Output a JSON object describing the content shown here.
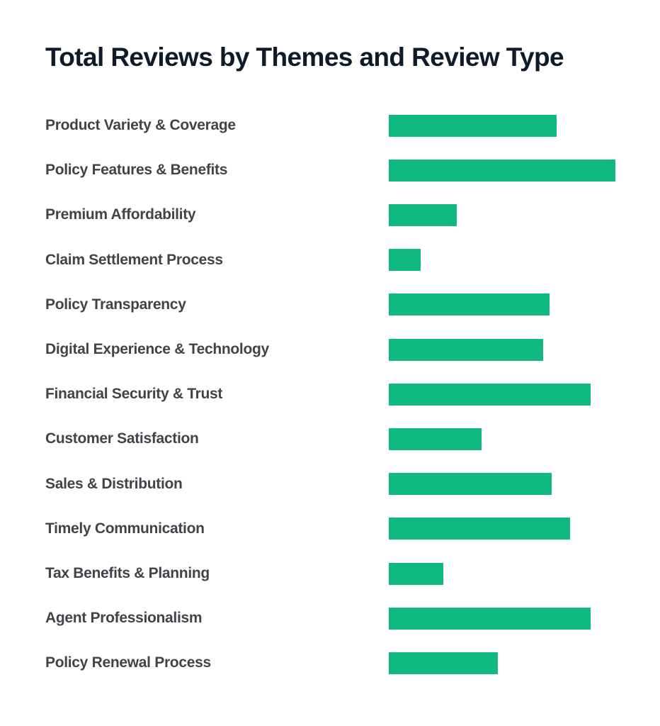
{
  "chart_data": {
    "type": "bar",
    "orientation": "horizontal",
    "title": "Total Reviews by Themes and Review Type",
    "categories": [
      "Product Variety & Coverage",
      "Policy Features & Benefits",
      "Premium Affordability",
      "Claim Settlement Process",
      "Policy Transparency",
      "Digital Experience & Technology",
      "Financial Security & Trust",
      "Customer Satisfaction",
      "Sales & Distribution",
      "Timely Communication",
      "Tax Benefits & Planning",
      "Agent Professionalism",
      "Policy Renewal Process"
    ],
    "values": [
      74,
      100,
      30,
      14,
      71,
      68,
      89,
      41,
      72,
      80,
      24,
      89,
      48
    ],
    "value_scale": "relative (no axis or data labels shown; values are bar lengths as % of the longest bar)",
    "bar_color": "#10b981",
    "grid": false,
    "legend": "none",
    "xlabel": "",
    "ylabel": ""
  }
}
